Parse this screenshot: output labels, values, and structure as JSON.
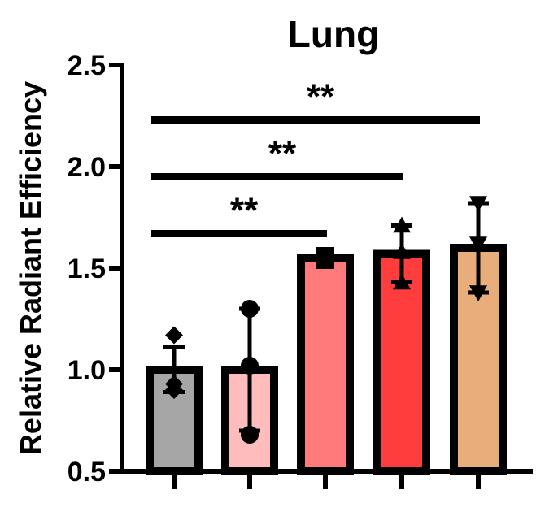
{
  "chart_data": {
    "type": "bar",
    "title": "Lung",
    "xlabel": "",
    "ylabel": "Relative Radiant Efficiency",
    "ylim": [
      0.5,
      2.5
    ],
    "yticks": [
      "0.5",
      "1.0",
      "1.5",
      "2.0",
      "2.5"
    ],
    "categories": [
      "",
      "",
      "",
      "",
      ""
    ],
    "values": [
      1.0,
      1.0,
      1.55,
      1.57,
      1.6
    ],
    "error_upper": [
      1.11,
      1.3,
      1.56,
      1.71,
      1.82
    ],
    "error_lower": [
      0.89,
      0.7,
      1.54,
      1.43,
      1.38
    ],
    "bar_colors": [
      "#a6a6a6",
      "#ffbcbc",
      "#ff7a7a",
      "#ff3d3d",
      "#e8ad7a"
    ],
    "points": [
      {
        "marker": "diamond",
        "values": [
          1.17,
          0.93,
          0.9
        ]
      },
      {
        "marker": "circle",
        "values": [
          1.3,
          1.02,
          0.68
        ]
      },
      {
        "marker": "square",
        "values": [
          1.56,
          1.55,
          1.54
        ]
      },
      {
        "marker": "triangle-up",
        "values": [
          1.71,
          1.58,
          1.43
        ]
      },
      {
        "marker": "triangle-down",
        "values": [
          1.82,
          1.62,
          1.38
        ]
      }
    ],
    "significance": [
      {
        "from": 0,
        "to": 2,
        "label": "**",
        "y": 1.67
      },
      {
        "from": 0,
        "to": 3,
        "label": "**",
        "y": 1.95
      },
      {
        "from": 0,
        "to": 4,
        "label": "**",
        "y": 2.23
      }
    ],
    "grid": false,
    "legend": "none"
  }
}
